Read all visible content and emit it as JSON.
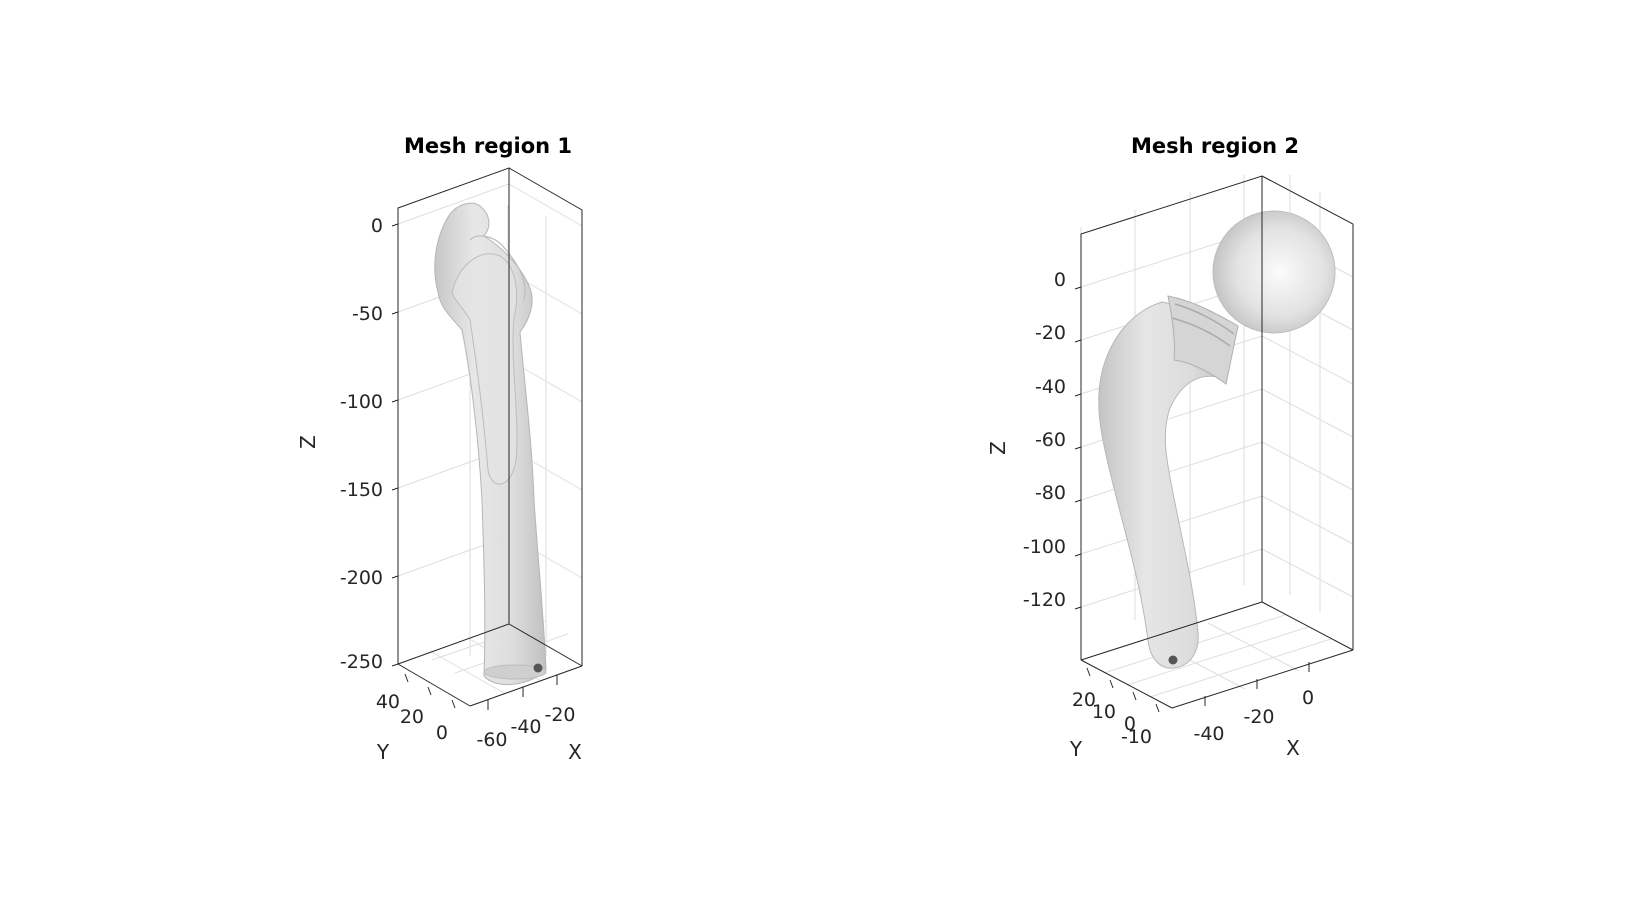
{
  "figure": {
    "background": "#ffffff",
    "mesh_color": "#d9d9d9",
    "marker_color": "#555555",
    "grid": true
  },
  "panels": [
    {
      "title": "Mesh region 1",
      "z_ticks": [
        "0",
        "-50",
        "-100",
        "-150",
        "-200",
        "-250"
      ],
      "y_ticks": [
        "40",
        "20",
        "0"
      ],
      "x_ticks": [
        "-60",
        "-40",
        "-20"
      ],
      "x_label": "X",
      "y_label": "Y",
      "z_label": "Z"
    },
    {
      "title": "Mesh region 2",
      "z_ticks": [
        "0",
        "-20",
        "-40",
        "-60",
        "-80",
        "-100",
        "-120"
      ],
      "y_ticks": [
        "20",
        "10",
        "0",
        "-10"
      ],
      "x_ticks": [
        "-40",
        "-20",
        "0"
      ],
      "x_label": "X",
      "y_label": "Y",
      "z_label": "Z"
    }
  ]
}
